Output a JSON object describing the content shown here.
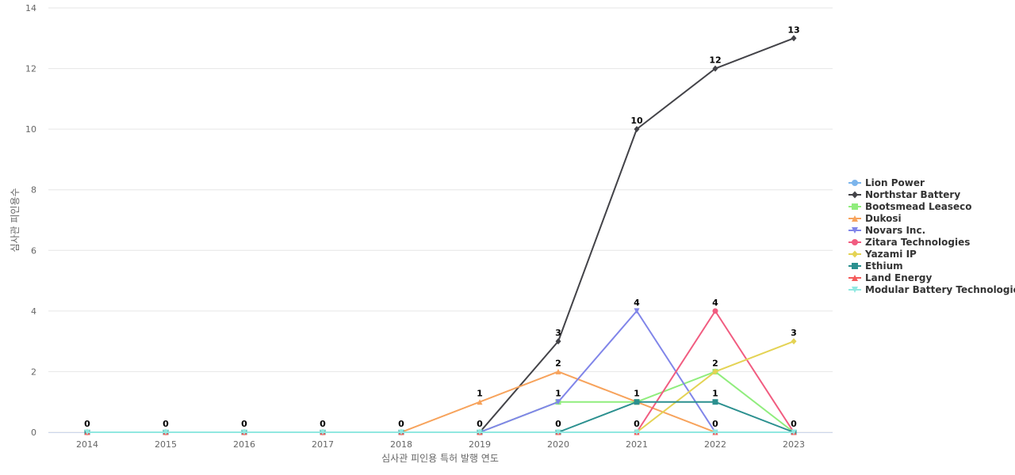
{
  "chart_data": {
    "type": "line",
    "title": "",
    "xlabel": "심사관 피인용 특허 발행 연도",
    "ylabel": "심사관 피인용수",
    "x": [
      "2014",
      "2015",
      "2016",
      "2017",
      "2018",
      "2019",
      "2020",
      "2021",
      "2022",
      "2023"
    ],
    "ylim": [
      0,
      14
    ],
    "yticks": [
      0,
      2,
      4,
      6,
      8,
      10,
      12,
      14
    ],
    "grid": true,
    "legend_position": "right",
    "data_labels_series": "Northstar Battery",
    "series": [
      {
        "name": "Lion Power",
        "color": "#7cb5ec",
        "marker": "circle",
        "values": [
          0,
          0,
          0,
          0,
          0,
          0,
          0,
          0,
          0,
          0
        ]
      },
      {
        "name": "Northstar Battery",
        "color": "#434348",
        "marker": "diamond",
        "values": [
          0,
          0,
          0,
          0,
          0,
          0,
          3,
          10,
          12,
          13
        ]
      },
      {
        "name": "Bootsmead Leaseco",
        "color": "#90ed7d",
        "marker": "square",
        "values": [
          0,
          0,
          0,
          0,
          0,
          0,
          1,
          1,
          2,
          0
        ]
      },
      {
        "name": "Dukosi",
        "color": "#f7a35c",
        "marker": "triangle",
        "values": [
          0,
          0,
          0,
          0,
          0,
          1,
          2,
          1,
          0,
          0
        ]
      },
      {
        "name": "Novars Inc.",
        "color": "#8085e9",
        "marker": "triangle-down",
        "values": [
          0,
          0,
          0,
          0,
          0,
          0,
          1,
          4,
          0,
          0
        ]
      },
      {
        "name": "Zitara Technologies",
        "color": "#f15c80",
        "marker": "circle",
        "values": [
          0,
          0,
          0,
          0,
          0,
          0,
          0,
          0,
          4,
          0
        ]
      },
      {
        "name": "Yazami IP",
        "color": "#e4d354",
        "marker": "diamond",
        "values": [
          0,
          0,
          0,
          0,
          0,
          0,
          0,
          0,
          2,
          3
        ]
      },
      {
        "name": "Ethium",
        "color": "#2b908f",
        "marker": "square",
        "values": [
          0,
          0,
          0,
          0,
          0,
          0,
          0,
          1,
          1,
          0
        ]
      },
      {
        "name": "Land Energy",
        "color": "#f45b5b",
        "marker": "triangle",
        "values": [
          0,
          0,
          0,
          0,
          0,
          0,
          0,
          0,
          0,
          0
        ]
      },
      {
        "name": "Modular Battery Technologies",
        "color": "#91e8e1",
        "marker": "triangle-down",
        "values": [
          0,
          0,
          0,
          0,
          0,
          0,
          0,
          0,
          0,
          0
        ]
      }
    ],
    "annotations": [
      {
        "x": "2014",
        "y": 0,
        "text": "0"
      },
      {
        "x": "2015",
        "y": 0,
        "text": "0"
      },
      {
        "x": "2016",
        "y": 0,
        "text": "0"
      },
      {
        "x": "2017",
        "y": 0,
        "text": "0"
      },
      {
        "x": "2018",
        "y": 0,
        "text": "0"
      },
      {
        "x": "2019",
        "y": 0,
        "text": "0"
      },
      {
        "x": "2019",
        "y": 1,
        "text": "1"
      },
      {
        "x": "2020",
        "y": 3,
        "text": "3"
      },
      {
        "x": "2020",
        "y": 2,
        "text": "2"
      },
      {
        "x": "2020",
        "y": 1,
        "text": "1"
      },
      {
        "x": "2020",
        "y": 0,
        "text": "0"
      },
      {
        "x": "2021",
        "y": 10,
        "text": "10"
      },
      {
        "x": "2021",
        "y": 4,
        "text": "4"
      },
      {
        "x": "2021",
        "y": 1,
        "text": "1"
      },
      {
        "x": "2021",
        "y": 0,
        "text": "0"
      },
      {
        "x": "2022",
        "y": 12,
        "text": "12"
      },
      {
        "x": "2022",
        "y": 4,
        "text": "4"
      },
      {
        "x": "2022",
        "y": 2,
        "text": "2"
      },
      {
        "x": "2022",
        "y": 1,
        "text": "1"
      },
      {
        "x": "2022",
        "y": 0,
        "text": "0"
      },
      {
        "x": "2023",
        "y": 13,
        "text": "13"
      },
      {
        "x": "2023",
        "y": 3,
        "text": "3"
      },
      {
        "x": "2023",
        "y": 0,
        "text": "0"
      }
    ]
  }
}
